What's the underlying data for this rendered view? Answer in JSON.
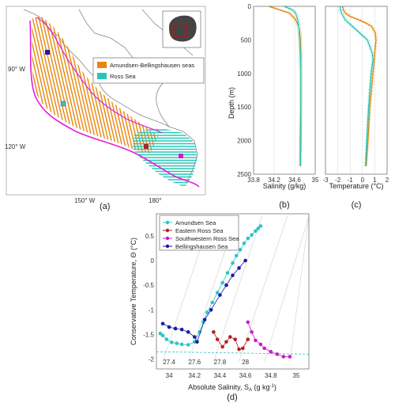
{
  "colors": {
    "amundsen_bellingshausen": "#e8860c",
    "ross": "#26c6b6",
    "boundary": "#e020e0",
    "coast": "#777777",
    "sw_ross": "#c81ec8",
    "e_ross": "#b22222",
    "bellingshausen": "#1a1aa8",
    "amundsen": "#2ec4c4"
  },
  "map": {
    "panel_label": "(a)",
    "lat_labels": [
      "90° W",
      "120° W",
      "150° W",
      "180°"
    ],
    "legend": [
      "Amundsen-Bellingshausen seas",
      "Ross Sea"
    ],
    "inset_icon": "antarctica-inset-icon"
  },
  "chart_data": [
    {
      "type": "line",
      "panel_label": "(b)",
      "xlabel": "Salinity (g/kg)",
      "ylabel": "Depth (m)",
      "xlim": [
        33.8,
        35.0
      ],
      "ylim": [
        2500,
        0
      ],
      "xticks": [
        "33.8",
        "34.2",
        "34.6",
        "35"
      ],
      "yticks": [
        "0",
        "500",
        "1000",
        "1500",
        "2000",
        "2500"
      ],
      "series": [
        {
          "color": "amundsen_bellingshausen",
          "depth": [
            0,
            50,
            100,
            200,
            300,
            400,
            500,
            700,
            1000,
            1500,
            2000,
            2380
          ],
          "values": [
            34.1,
            34.3,
            34.5,
            34.62,
            34.68,
            34.7,
            34.71,
            34.72,
            34.72,
            34.72,
            34.71,
            34.71
          ]
        },
        {
          "color": "ross",
          "depth": [
            0,
            50,
            100,
            200,
            300,
            400,
            500,
            700,
            1000,
            1500,
            2000,
            2380
          ],
          "values": [
            34.4,
            34.55,
            34.62,
            34.66,
            34.68,
            34.69,
            34.7,
            34.71,
            34.72,
            34.72,
            34.72,
            34.71
          ]
        }
      ]
    },
    {
      "type": "line",
      "panel_label": "(c)",
      "xlabel": "Temperature (°C)",
      "xlim": [
        -3,
        2
      ],
      "ylim": [
        2500,
        0
      ],
      "xticks": [
        "-3",
        "-2",
        "-1",
        "0",
        "1",
        "2"
      ],
      "series": [
        {
          "color": "amundsen_bellingshausen",
          "depth": [
            0,
            50,
            100,
            150,
            200,
            250,
            300,
            400,
            500,
            700,
            1000,
            1500,
            2000,
            2380
          ],
          "values": [
            -1.6,
            -1.55,
            -1.4,
            -1.0,
            -0.3,
            0.3,
            0.75,
            1.05,
            1.1,
            1.0,
            0.85,
            0.6,
            0.45,
            0.3
          ]
        },
        {
          "color": "ross",
          "depth": [
            0,
            50,
            100,
            200,
            300,
            400,
            500,
            700,
            800,
            1000,
            1500,
            2000,
            2380
          ],
          "values": [
            -1.8,
            -1.8,
            -1.7,
            -1.4,
            -0.8,
            -0.2,
            0.4,
            0.8,
            0.85,
            0.7,
            0.5,
            0.35,
            0.25
          ]
        }
      ]
    },
    {
      "type": "scatter",
      "panel_label": "(d)",
      "xlabel": "Absolute Salinity, S",
      "xlabel_sub": "A",
      "xlabel_unit": " (g kg",
      "xlabel_sup": "-1",
      "xlabel_end": ")",
      "ylabel": "Conservative Temperature,  Θ (°C)",
      "xlim": [
        33.9,
        35.1
      ],
      "ylim": [
        -2.2,
        0.95
      ],
      "xticks": [
        "34",
        "34.2",
        "34.4",
        "34.6",
        "34.8",
        "35"
      ],
      "yticks": [
        "0.5",
        "0",
        "-0.5",
        "-1",
        "-1.5",
        "-2"
      ],
      "freezing_line_y": -1.85,
      "series": [
        {
          "name": "Amundsen Sea",
          "color": "amundsen",
          "x": [
            33.93,
            33.95,
            33.98,
            34.02,
            34.06,
            34.1,
            34.15,
            34.2,
            34.24,
            34.27,
            34.3,
            34.34,
            34.38,
            34.42,
            34.46,
            34.5,
            34.53,
            34.56,
            34.59,
            34.62,
            34.65,
            34.68,
            34.7,
            34.72
          ],
          "y": [
            -1.48,
            -1.52,
            -1.6,
            -1.66,
            -1.68,
            -1.7,
            -1.71,
            -1.65,
            -1.45,
            -1.25,
            -1.05,
            -0.85,
            -0.65,
            -0.45,
            -0.25,
            -0.05,
            0.1,
            0.22,
            0.35,
            0.45,
            0.52,
            0.6,
            0.65,
            0.7
          ]
        },
        {
          "name": "Eastern Ross Sea",
          "color": "e_ross",
          "x": [
            34.35,
            34.38,
            34.42,
            34.45,
            34.48,
            34.52,
            34.55,
            34.58,
            34.62
          ],
          "y": [
            -1.45,
            -1.6,
            -1.75,
            -1.65,
            -1.55,
            -1.6,
            -1.8,
            -1.78,
            -1.6
          ]
        },
        {
          "name": "Southwestern Ross Sea",
          "color": "sw_ross",
          "x": [
            34.62,
            34.65,
            34.68,
            34.72,
            34.75,
            34.8,
            34.85,
            34.9,
            34.95
          ],
          "y": [
            -1.25,
            -1.45,
            -1.62,
            -1.7,
            -1.78,
            -1.85,
            -1.9,
            -1.95,
            -1.95
          ]
        },
        {
          "name": "Bellingshausen Sea",
          "color": "bellingshausen",
          "x": [
            33.95,
            34.0,
            34.05,
            34.1,
            34.15,
            34.2,
            34.22,
            34.28,
            34.33,
            34.4,
            34.45,
            34.5,
            34.55,
            34.6
          ],
          "y": [
            -1.28,
            -1.35,
            -1.38,
            -1.4,
            -1.45,
            -1.55,
            -1.65,
            -1.2,
            -1.0,
            -0.7,
            -0.5,
            -0.3,
            -0.15,
            0.0
          ]
        }
      ],
      "density_labels": [
        "27.4",
        "27.6",
        "27.8",
        "28"
      ]
    }
  ]
}
